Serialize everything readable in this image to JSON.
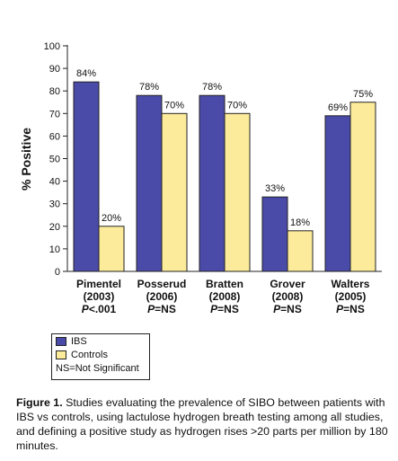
{
  "chart_data": {
    "type": "bar",
    "ylabel": "% Positive",
    "ylim": [
      0,
      100
    ],
    "yticks": [
      "0",
      "10",
      "20",
      "30",
      "40",
      "50",
      "60",
      "70",
      "80",
      "90",
      "100"
    ],
    "categories": [
      {
        "study": "Pimentel",
        "year": "(2003)",
        "p_prefix": "P",
        "p_suffix": "<.001"
      },
      {
        "study": "Posserud",
        "year": "(2006)",
        "p_prefix": "P",
        "p_suffix": "=NS"
      },
      {
        "study": "Bratten",
        "year": "(2008)",
        "p_prefix": "P",
        "p_suffix": "=NS"
      },
      {
        "study": "Grover",
        "year": "(2008)",
        "p_prefix": "P",
        "p_suffix": "=NS"
      },
      {
        "study": "Walters",
        "year": "(2005)",
        "p_prefix": "P",
        "p_suffix": "=NS"
      }
    ],
    "series": [
      {
        "name": "IBS",
        "color": "#4a4aa8",
        "values": [
          84,
          78,
          78,
          33,
          69
        ],
        "labels": [
          "84%",
          "78%",
          "78%",
          "33%",
          "69%"
        ]
      },
      {
        "name": "Controls",
        "color": "#fbeb9b",
        "values": [
          20,
          70,
          70,
          18,
          75
        ],
        "labels": [
          "20%",
          "70%",
          "70%",
          "18%",
          "75%"
        ]
      }
    ]
  },
  "legend": {
    "items": [
      {
        "label": "IBS",
        "color": "#4a4aa8"
      },
      {
        "label": "Controls",
        "color": "#fbeb9b"
      }
    ],
    "note": "NS=Not Significant"
  },
  "caption": {
    "label": "Figure 1.",
    "text": "Studies evaluating the prevalence of SIBO between patients with IBS vs controls, using lactulose hydrogen breath testing among all studies, and defining a positive study as hydrogen rises >20 parts per million by 180 minutes."
  }
}
